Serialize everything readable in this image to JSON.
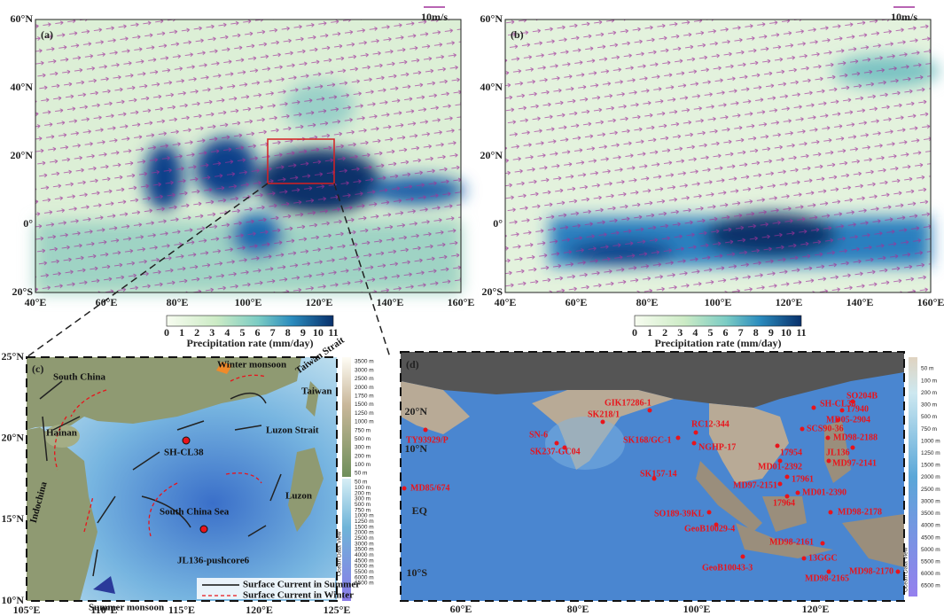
{
  "panels": [
    {
      "label": "(a)",
      "scale_label": "10m/s",
      "lat_labels": [
        "60°N",
        "40°N",
        "20°N",
        "0°",
        "20°S"
      ],
      "lon_labels": [
        "40°E",
        "60°E",
        "80°E",
        "100°E",
        "120°E",
        "140°E",
        "160°E"
      ],
      "colorbar": {
        "ticks": [
          0,
          1,
          2,
          3,
          4,
          5,
          6,
          7,
          8,
          9,
          10,
          11
        ],
        "title": "Precipitation rate (mm/day)"
      }
    },
    {
      "label": "(b)",
      "scale_label": "10m/s",
      "lat_labels": [
        "60°N",
        "40°N",
        "20°N",
        "0°",
        "20°S"
      ],
      "lon_labels": [
        "40°E",
        "60°E",
        "80°E",
        "100°E",
        "120°E",
        "140°E",
        "160°E"
      ],
      "colorbar": {
        "ticks": [
          0,
          1,
          2,
          3,
          4,
          5,
          6,
          7,
          8,
          9,
          10,
          11
        ],
        "title": "Precipitation rate (mm/day)"
      }
    },
    {
      "label": "(c)",
      "lat_labels": [
        "25°N",
        "20°N",
        "15°N",
        "10°N"
      ],
      "lon_labels": [
        "105°E",
        "110°E",
        "115°E",
        "120°E",
        "125°E"
      ],
      "place_labels": [
        "South China",
        "Winter monsoon",
        "Taiwan Strait",
        "Taiwan",
        "Luzon Strait",
        "Hainan",
        "South China Sea",
        "Luzon",
        "Indochina",
        "Summer monsoon"
      ],
      "stations": [
        "SH-CL38",
        "JL136-pushcore6"
      ],
      "legend": [
        "Surface Current in Summer",
        "Surface Current in Winter"
      ],
      "depth_labels_land": [
        "3500 m",
        "3000 m",
        "2500 m",
        "2000 m",
        "1750 m",
        "1500 m",
        "1250 m",
        "1000 m",
        "750 m",
        "500 m",
        "300 m",
        "200 m",
        "100 m",
        "50 m"
      ],
      "depth_labels_sea": [
        "50 m",
        "100 m",
        "200 m",
        "300 m",
        "500 m",
        "750 m",
        "1000 m",
        "1250 m",
        "1500 m",
        "2000 m",
        "2500 m",
        "3000 m",
        "3500 m",
        "4000 m",
        "4500 m",
        "5000 m",
        "5500 m",
        "6000 m",
        "6500 m"
      ],
      "credit": "Ocean Data View"
    },
    {
      "label": "(d)",
      "lat_labels": [
        "20°N",
        "10°N",
        "EQ",
        "10°S"
      ],
      "lon_labels": [
        "60°E",
        "80°E",
        "100°E",
        "120°E"
      ],
      "stations": [
        "GIK17286-1",
        "SK218/1",
        "TY93929/P",
        "SN-6",
        "SK237-GC04",
        "SK168/GC-1",
        "RC12-344",
        "NGHP-17",
        "SK157-14",
        "MD85/674",
        "SO189-39KL",
        "GeoB10029-4",
        "GeoB10043-3",
        "SH-CL38",
        "SO204B",
        "17940",
        "MD05-2904",
        "SCS90-36",
        "MD98-2188",
        "17954",
        "JL136",
        "MD97-2141",
        "MD01-2392",
        "17961",
        "MD97-2151",
        "MD01-2390",
        "17964",
        "MD98-2178",
        "MD98-2161",
        "13GGC",
        "MD98-2170",
        "MD98-2165"
      ],
      "depth_labels": [
        "50 m",
        "100 m",
        "200 m",
        "300 m",
        "500 m",
        "750 m",
        "1000 m",
        "1250 m",
        "1500 m",
        "2000 m",
        "2500 m",
        "3000 m",
        "3500 m",
        "4000 m",
        "4500 m",
        "5000 m",
        "5500 m",
        "6000 m",
        "6500 m"
      ],
      "credit": "Ocean Data View"
    }
  ]
}
